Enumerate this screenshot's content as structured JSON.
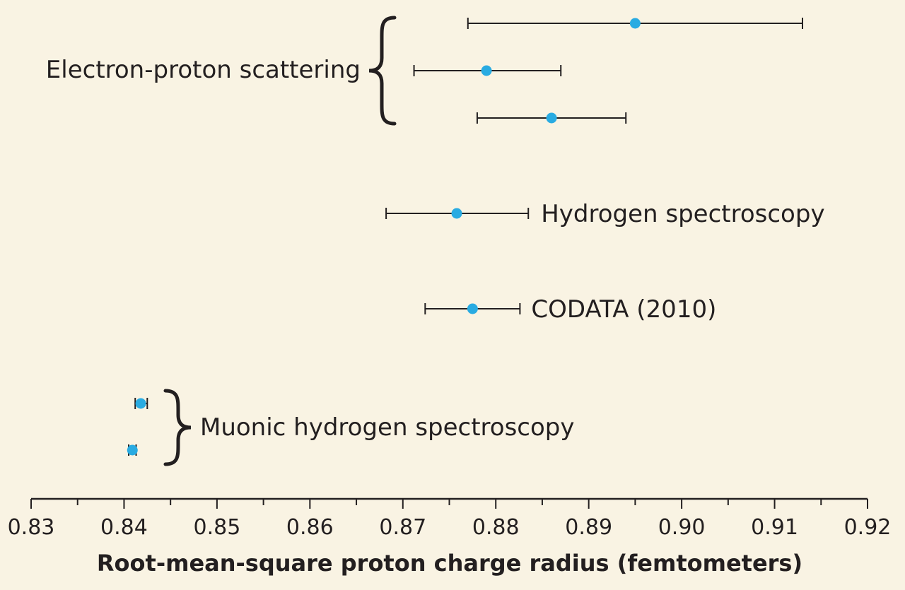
{
  "chart_data": {
    "type": "scatter",
    "title": "",
    "xlabel": "Root-mean-square proton charge radius (femtometers)",
    "ylabel": "",
    "xlim": [
      0.83,
      0.92
    ],
    "x_ticks": [
      "0.83",
      "0.84",
      "0.85",
      "0.86",
      "0.87",
      "0.88",
      "0.89",
      "0.90",
      "0.91",
      "0.92"
    ],
    "grid": false,
    "marker_color": "#29abe2",
    "errorbar_color": "#231f20",
    "groups": [
      {
        "label": "Electron-proton scattering",
        "points": [
          {
            "value": 0.895,
            "lower": 0.877,
            "upper": 0.913
          },
          {
            "value": 0.879,
            "lower": 0.8712,
            "upper": 0.887
          },
          {
            "value": 0.886,
            "lower": 0.878,
            "upper": 0.894
          }
        ]
      },
      {
        "label": "Hydrogen spectroscopy",
        "points": [
          {
            "value": 0.8758,
            "lower": 0.8682,
            "upper": 0.8835
          }
        ]
      },
      {
        "label": "CODATA (2010)",
        "points": [
          {
            "value": 0.8775,
            "lower": 0.8724,
            "upper": 0.8826
          }
        ]
      },
      {
        "label": "Muonic hydrogen spectroscopy",
        "points": [
          {
            "value": 0.8418,
            "lower": 0.8412,
            "upper": 0.8425
          },
          {
            "value": 0.8409,
            "lower": 0.8405,
            "upper": 0.8413
          }
        ]
      }
    ]
  }
}
